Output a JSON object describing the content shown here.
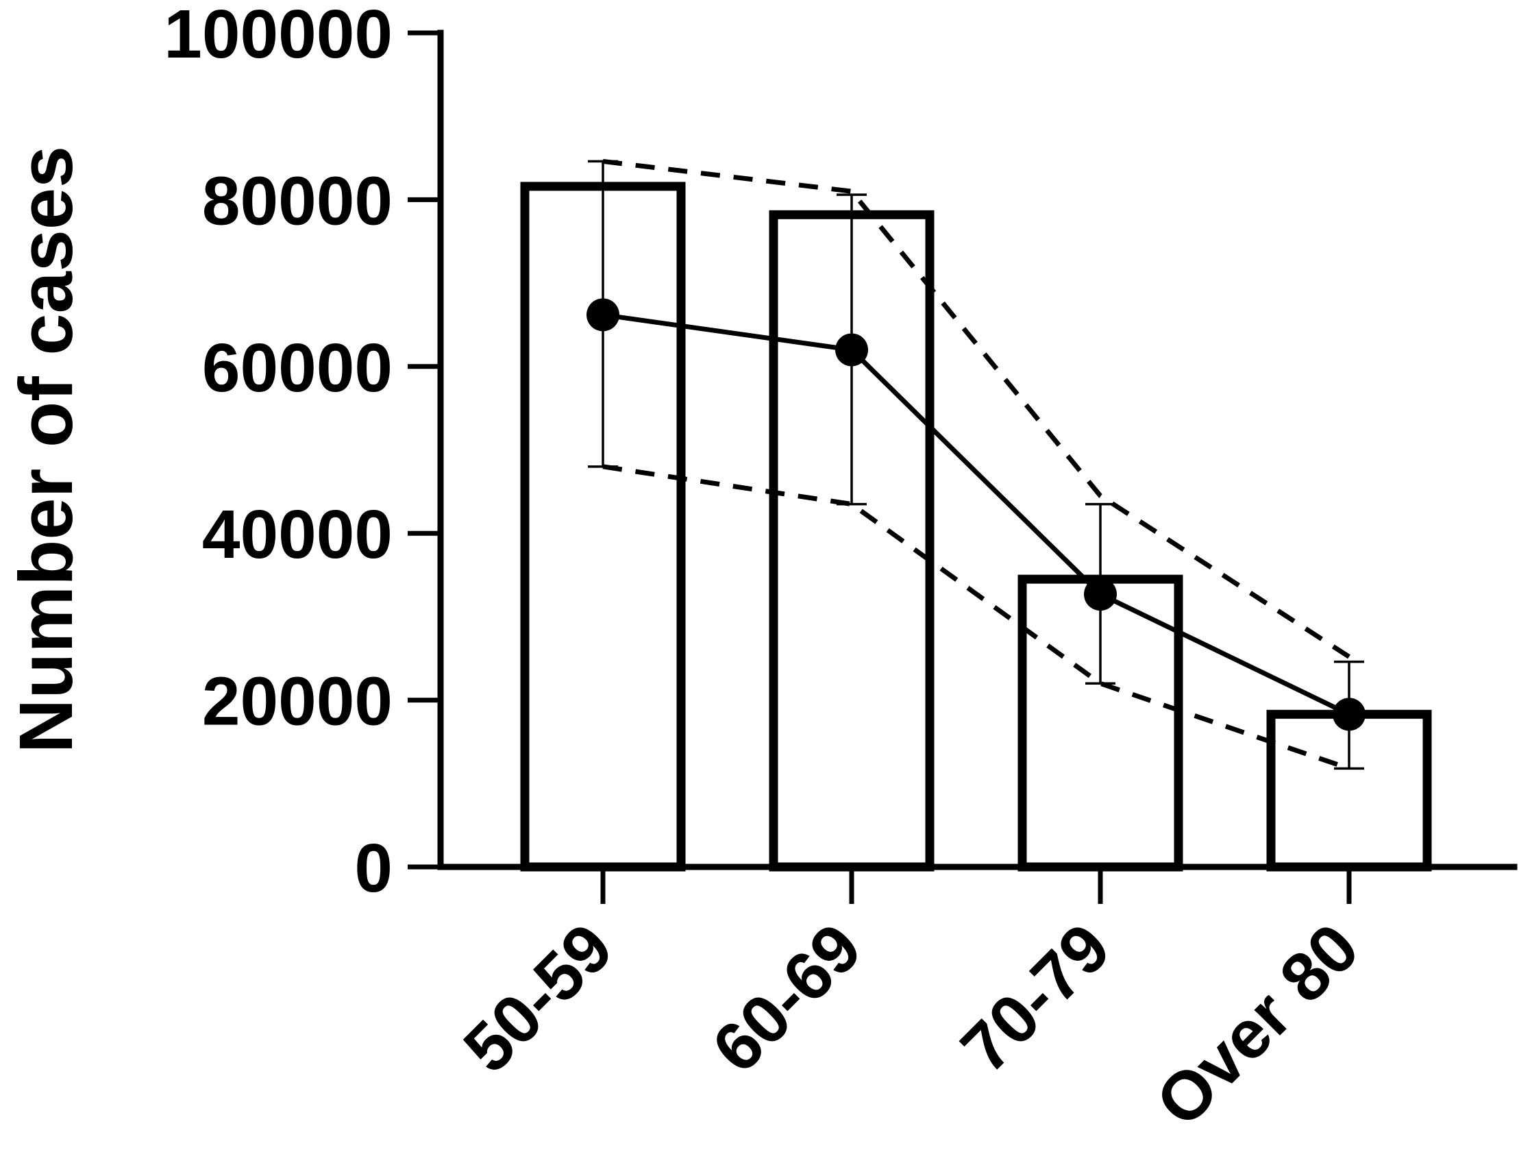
{
  "chart_data": {
    "type": "bar",
    "title": "",
    "xlabel": "",
    "ylabel": "Number of cases",
    "ylim": [
      0,
      100000
    ],
    "yticks": [
      0,
      20000,
      40000,
      60000,
      80000,
      100000
    ],
    "ytick_labels": [
      "0",
      "20000",
      "40000",
      "60000",
      "80000",
      "100000"
    ],
    "categories": [
      "50-59",
      "60-69",
      "70-79",
      "Over 80"
    ],
    "grid": false,
    "legend": "none",
    "bars": {
      "values": [
        81600,
        78200,
        34500,
        18300
      ]
    },
    "line": {
      "values": [
        66200,
        62000,
        32700,
        18300
      ],
      "error_low": [
        48000,
        43500,
        22000,
        11800
      ],
      "error_high": [
        84600,
        80600,
        43500,
        24600
      ]
    },
    "dashed_upper": [
      84600,
      81000,
      44500,
      25200
    ],
    "dashed_lower": [
      48000,
      43500,
      22000,
      11800
    ]
  }
}
